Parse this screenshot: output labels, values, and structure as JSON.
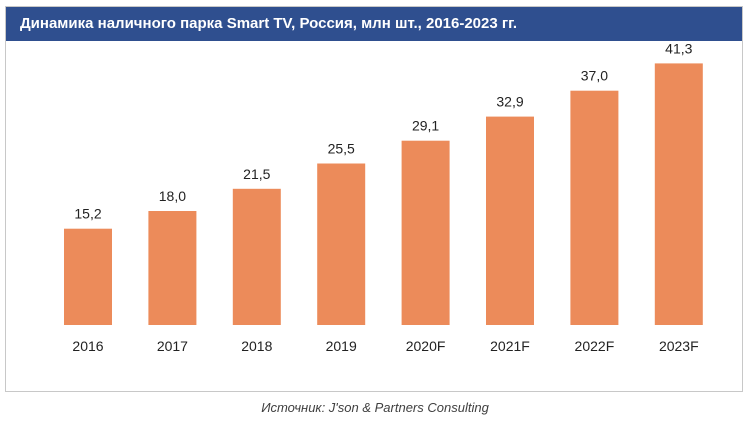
{
  "title": "Динамика наличного парка Smart TV, Россия, млн шт., 2016-2023 гг.",
  "source": "Источник: J'son & Partners Consulting",
  "colors": {
    "header_bg": "#2f4f8f",
    "bar": "#ec8b5a"
  },
  "chart_data": {
    "type": "bar",
    "title": "Динамика наличного парка Smart TV, Россия, млн шт., 2016-2023 гг.",
    "categories": [
      "2016",
      "2017",
      "2018",
      "2019",
      "2020F",
      "2021F",
      "2022F",
      "2023F"
    ],
    "values": [
      15.2,
      18.0,
      21.5,
      25.5,
      29.1,
      32.9,
      37.0,
      41.3
    ],
    "value_labels": [
      "15,2",
      "18,0",
      "21,5",
      "25,5",
      "29,1",
      "32,9",
      "37,0",
      "41,3"
    ],
    "xlabel": "",
    "ylabel": "",
    "ylim": [
      0,
      45
    ],
    "grid": false,
    "legend": "none"
  }
}
